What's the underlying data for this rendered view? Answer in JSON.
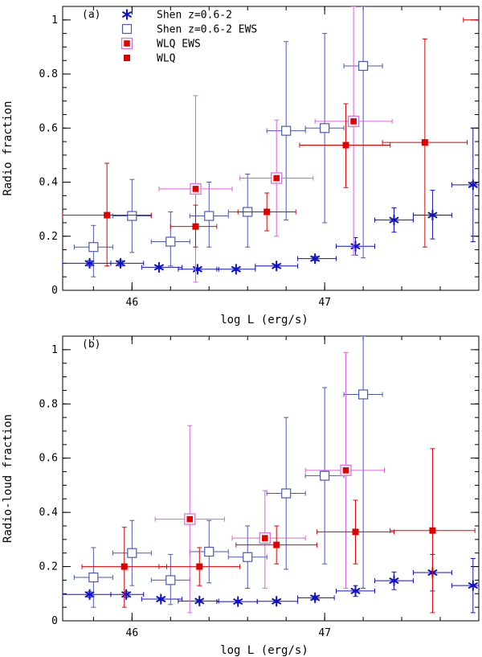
{
  "colors": {
    "shen": "#1010c8",
    "shen_ews": "#4a5ab4",
    "wlq_ews_box": "#e070e0",
    "wlq_ews_err": "#e060e0",
    "wlq": "#e00000"
  },
  "chart_data": [
    {
      "type": "scatter",
      "panel_label": "(a)",
      "xlabel": "log L (erg/s)",
      "ylabel": "Radio fraction",
      "xlim": [
        45.64,
        47.8
      ],
      "ylim": [
        0,
        1.05
      ],
      "xticks": [
        {
          "v": 46,
          "label": "46"
        },
        {
          "v": 47,
          "label": "47"
        }
      ],
      "xminor_step": 0.2,
      "yticks": [
        {
          "v": 0,
          "label": "0"
        },
        {
          "v": 0.2,
          "label": "0.2"
        },
        {
          "v": 0.4,
          "label": "0.4"
        },
        {
          "v": 0.6,
          "label": "0.6"
        },
        {
          "v": 0.8,
          "label": "0.8"
        },
        {
          "v": 1,
          "label": "1"
        }
      ],
      "yminor_step": 0.05,
      "legend": [
        {
          "name": "Shen z=0.6-2",
          "marker": "asterisk",
          "color": "#1010c8"
        },
        {
          "name": "Shen z=0.6-2 EWS",
          "marker": "open-square",
          "color": "#4a5ab4"
        },
        {
          "name": "WLQ EWS",
          "marker": "boxed-square",
          "color": "#e070e0"
        },
        {
          "name": "WLQ",
          "marker": "filled-square",
          "color": "#e00000"
        }
      ],
      "series": [
        {
          "marker": "asterisk",
          "color": "#1010c8",
          "points": [
            {
              "x": 45.78,
              "y": 0.1,
              "xlo": 45.64,
              "xhi": 45.89,
              "ylo": 0.09,
              "yhi": 0.11
            },
            {
              "x": 45.94,
              "y": 0.1,
              "xlo": 45.89,
              "xhi": 46.06,
              "ylo": 0.09,
              "yhi": 0.11
            },
            {
              "x": 46.14,
              "y": 0.085,
              "xlo": 46.05,
              "xhi": 46.26,
              "ylo": 0.08,
              "yhi": 0.09
            },
            {
              "x": 46.34,
              "y": 0.078,
              "xlo": 46.24,
              "xhi": 46.45,
              "ylo": 0.073,
              "yhi": 0.083
            },
            {
              "x": 46.54,
              "y": 0.078,
              "xlo": 46.44,
              "xhi": 46.64,
              "ylo": 0.073,
              "yhi": 0.083
            },
            {
              "x": 46.75,
              "y": 0.09,
              "xlo": 46.64,
              "xhi": 46.86,
              "ylo": 0.085,
              "yhi": 0.095
            },
            {
              "x": 46.95,
              "y": 0.117,
              "xlo": 46.86,
              "xhi": 47.06,
              "ylo": 0.11,
              "yhi": 0.125
            },
            {
              "x": 47.16,
              "y": 0.163,
              "xlo": 47.06,
              "xhi": 47.26,
              "ylo": 0.13,
              "yhi": 0.195
            },
            {
              "x": 47.36,
              "y": 0.26,
              "xlo": 47.26,
              "xhi": 47.46,
              "ylo": 0.215,
              "yhi": 0.305
            },
            {
              "x": 47.56,
              "y": 0.278,
              "xlo": 47.46,
              "xhi": 47.66,
              "ylo": 0.19,
              "yhi": 0.37
            },
            {
              "x": 47.77,
              "y": 0.39,
              "xlo": 47.66,
              "xhi": 47.8,
              "ylo": 0.18,
              "yhi": 0.6
            }
          ]
        },
        {
          "marker": "open-square",
          "color": "#4a5ab4",
          "points": [
            {
              "x": 45.8,
              "y": 0.16,
              "xlo": 45.7,
              "xhi": 45.9,
              "ylo": 0.05,
              "yhi": 0.24
            },
            {
              "x": 46.0,
              "y": 0.275,
              "xlo": 45.9,
              "xhi": 46.1,
              "ylo": 0.14,
              "yhi": 0.41
            },
            {
              "x": 46.2,
              "y": 0.18,
              "xlo": 46.1,
              "xhi": 46.3,
              "ylo": 0.09,
              "yhi": 0.29
            },
            {
              "x": 46.4,
              "y": 0.275,
              "xlo": 46.3,
              "xhi": 46.5,
              "ylo": 0.16,
              "yhi": 0.4
            },
            {
              "x": 46.6,
              "y": 0.29,
              "xlo": 46.5,
              "xhi": 46.7,
              "ylo": 0.16,
              "yhi": 0.43
            },
            {
              "x": 46.8,
              "y": 0.59,
              "xlo": 46.7,
              "xhi": 46.9,
              "ylo": 0.26,
              "yhi": 0.92
            },
            {
              "x": 47.0,
              "y": 0.6,
              "xlo": 46.9,
              "xhi": 47.1,
              "ylo": 0.25,
              "yhi": 0.95
            },
            {
              "x": 47.2,
              "y": 0.83,
              "xlo": 47.1,
              "xhi": 47.3,
              "ylo": 0.12,
              "yhi": 1.05
            }
          ]
        },
        {
          "marker": "boxed-square",
          "color": "#e070e0",
          "points": [
            {
              "x": 46.33,
              "y": 0.375,
              "xlo": 46.14,
              "xhi": 46.52,
              "ylo": 0.03,
              "yhi": 0.72
            },
            {
              "x": 46.75,
              "y": 0.415,
              "xlo": 46.56,
              "xhi": 46.94,
              "ylo": 0.2,
              "yhi": 0.63
            },
            {
              "x": 47.15,
              "y": 0.625,
              "xlo": 46.95,
              "xhi": 47.35,
              "ylo": 0.13,
              "yhi": 1.05
            }
          ]
        },
        {
          "marker": "filled-square",
          "color": "#e00000",
          "points": [
            {
              "x": 45.87,
              "y": 0.278,
              "xlo": 45.64,
              "xhi": 46.1,
              "ylo": 0.09,
              "yhi": 0.47
            },
            {
              "x": 46.33,
              "y": 0.236,
              "xlo": 46.2,
              "xhi": 46.44,
              "ylo": 0.16,
              "yhi": 0.315
            },
            {
              "x": 46.7,
              "y": 0.29,
              "xlo": 46.55,
              "xhi": 46.85,
              "ylo": 0.22,
              "yhi": 0.36
            },
            {
              "x": 47.11,
              "y": 0.537,
              "xlo": 46.87,
              "xhi": 47.34,
              "ylo": 0.38,
              "yhi": 0.69
            },
            {
              "x": 47.52,
              "y": 0.547,
              "xlo": 47.3,
              "xhi": 47.74,
              "ylo": 0.16,
              "yhi": 0.93
            },
            {
              "x": 47.9,
              "y": 1.0,
              "xlo": 47.72,
              "xhi": 48.2,
              "ylo": 1.0,
              "yhi": 1.0
            }
          ]
        }
      ]
    },
    {
      "type": "scatter",
      "panel_label": "(b)",
      "xlabel": "log L (erg/s)",
      "ylabel": "Radio-loud fraction",
      "xlim": [
        45.64,
        47.8
      ],
      "ylim": [
        0,
        1.05
      ],
      "xticks": [
        {
          "v": 46,
          "label": "46"
        },
        {
          "v": 47,
          "label": "47"
        }
      ],
      "xminor_step": 0.2,
      "yticks": [
        {
          "v": 0,
          "label": "0"
        },
        {
          "v": 0.2,
          "label": "0.2"
        },
        {
          "v": 0.4,
          "label": "0.4"
        },
        {
          "v": 0.6,
          "label": "0.6"
        },
        {
          "v": 0.8,
          "label": "0.8"
        },
        {
          "v": 1,
          "label": "1"
        }
      ],
      "yminor_step": 0.05,
      "series": [
        {
          "marker": "asterisk",
          "color": "#1010c8",
          "points": [
            {
              "x": 45.78,
              "y": 0.097,
              "xlo": 45.64,
              "xhi": 45.89,
              "ylo": 0.087,
              "yhi": 0.107
            },
            {
              "x": 45.97,
              "y": 0.097,
              "xlo": 45.89,
              "xhi": 46.06,
              "ylo": 0.087,
              "yhi": 0.107
            },
            {
              "x": 46.15,
              "y": 0.08,
              "xlo": 46.05,
              "xhi": 46.26,
              "ylo": 0.075,
              "yhi": 0.085
            },
            {
              "x": 46.35,
              "y": 0.073,
              "xlo": 46.24,
              "xhi": 46.45,
              "ylo": 0.068,
              "yhi": 0.078
            },
            {
              "x": 46.55,
              "y": 0.071,
              "xlo": 46.44,
              "xhi": 46.65,
              "ylo": 0.066,
              "yhi": 0.076
            },
            {
              "x": 46.75,
              "y": 0.072,
              "xlo": 46.65,
              "xhi": 46.86,
              "ylo": 0.067,
              "yhi": 0.077
            },
            {
              "x": 46.95,
              "y": 0.085,
              "xlo": 46.86,
              "xhi": 47.05,
              "ylo": 0.078,
              "yhi": 0.092
            },
            {
              "x": 47.16,
              "y": 0.11,
              "xlo": 47.06,
              "xhi": 47.26,
              "ylo": 0.09,
              "yhi": 0.13
            },
            {
              "x": 47.36,
              "y": 0.148,
              "xlo": 47.26,
              "xhi": 47.46,
              "ylo": 0.115,
              "yhi": 0.18
            },
            {
              "x": 47.56,
              "y": 0.178,
              "xlo": 47.46,
              "xhi": 47.66,
              "ylo": 0.11,
              "yhi": 0.245
            },
            {
              "x": 47.77,
              "y": 0.13,
              "xlo": 47.66,
              "xhi": 47.8,
              "ylo": 0.03,
              "yhi": 0.23
            }
          ]
        },
        {
          "marker": "open-square",
          "color": "#4a5ab4",
          "points": [
            {
              "x": 45.8,
              "y": 0.16,
              "xlo": 45.7,
              "xhi": 45.9,
              "ylo": 0.05,
              "yhi": 0.27
            },
            {
              "x": 46.0,
              "y": 0.25,
              "xlo": 45.9,
              "xhi": 46.1,
              "ylo": 0.13,
              "yhi": 0.37
            },
            {
              "x": 46.2,
              "y": 0.15,
              "xlo": 46.1,
              "xhi": 46.3,
              "ylo": 0.06,
              "yhi": 0.245
            },
            {
              "x": 46.4,
              "y": 0.255,
              "xlo": 46.3,
              "xhi": 46.5,
              "ylo": 0.14,
              "yhi": 0.37
            },
            {
              "x": 46.6,
              "y": 0.235,
              "xlo": 46.5,
              "xhi": 46.7,
              "ylo": 0.12,
              "yhi": 0.35
            },
            {
              "x": 46.8,
              "y": 0.47,
              "xlo": 46.7,
              "xhi": 46.9,
              "ylo": 0.19,
              "yhi": 0.75
            },
            {
              "x": 47.0,
              "y": 0.535,
              "xlo": 46.9,
              "xhi": 47.1,
              "ylo": 0.21,
              "yhi": 0.86
            },
            {
              "x": 47.2,
              "y": 0.835,
              "xlo": 47.1,
              "xhi": 47.3,
              "ylo": 0.12,
              "yhi": 1.05
            }
          ]
        },
        {
          "marker": "boxed-square",
          "color": "#e070e0",
          "points": [
            {
              "x": 46.3,
              "y": 0.375,
              "xlo": 46.12,
              "xhi": 46.48,
              "ylo": 0.03,
              "yhi": 0.72
            },
            {
              "x": 46.69,
              "y": 0.305,
              "xlo": 46.52,
              "xhi": 46.9,
              "ylo": 0.12,
              "yhi": 0.48
            },
            {
              "x": 47.11,
              "y": 0.555,
              "xlo": 46.9,
              "xhi": 47.31,
              "ylo": 0.12,
              "yhi": 0.99
            }
          ]
        },
        {
          "marker": "filled-square",
          "color": "#e00000",
          "points": [
            {
              "x": 45.96,
              "y": 0.2,
              "xlo": 45.74,
              "xhi": 46.18,
              "ylo": 0.05,
              "yhi": 0.345
            },
            {
              "x": 46.35,
              "y": 0.2,
              "xlo": 46.14,
              "xhi": 46.56,
              "ylo": 0.13,
              "yhi": 0.27
            },
            {
              "x": 46.75,
              "y": 0.28,
              "xlo": 46.54,
              "xhi": 46.96,
              "ylo": 0.21,
              "yhi": 0.35
            },
            {
              "x": 47.16,
              "y": 0.328,
              "xlo": 46.96,
              "xhi": 47.36,
              "ylo": 0.21,
              "yhi": 0.445
            },
            {
              "x": 47.56,
              "y": 0.333,
              "xlo": 47.34,
              "xhi": 47.78,
              "ylo": 0.03,
              "yhi": 0.635
            }
          ]
        }
      ]
    }
  ]
}
